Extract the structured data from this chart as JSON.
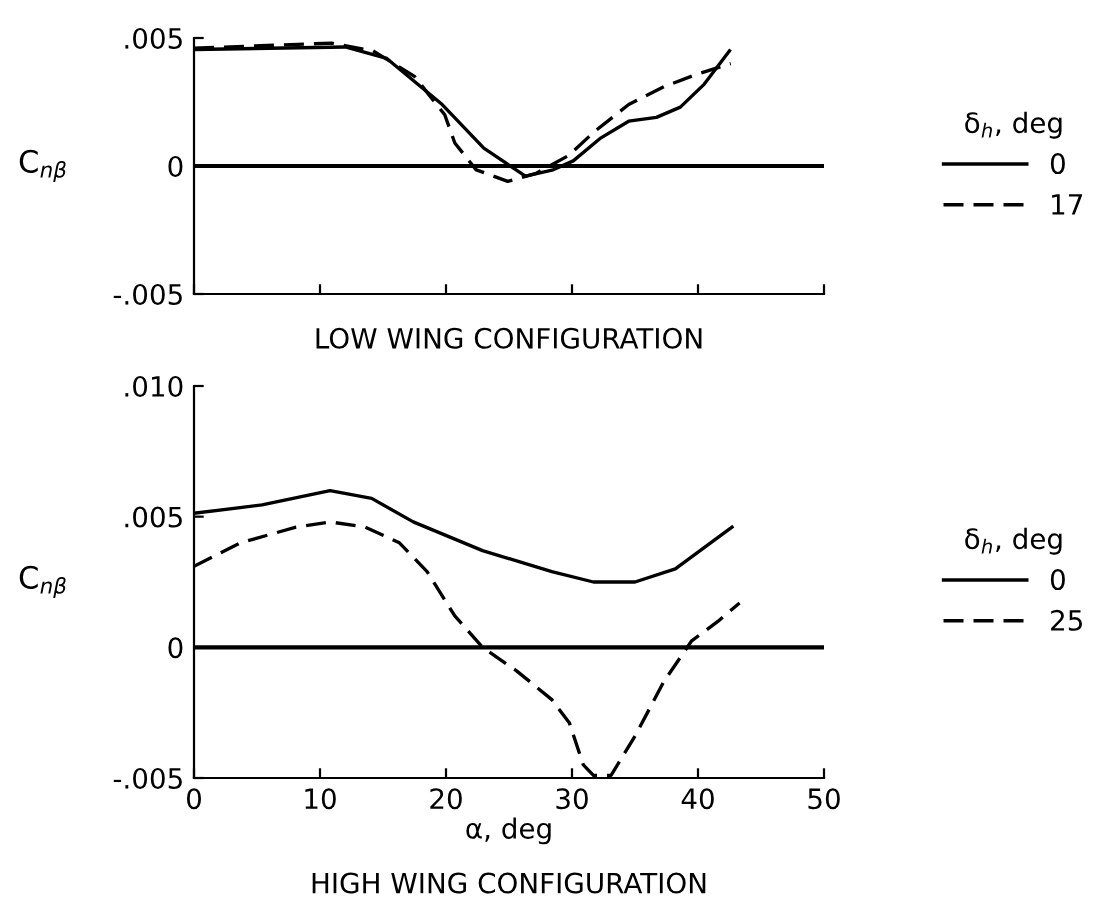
{
  "chart_data": [
    {
      "type": "line",
      "ylabel": "C$_{nβ}$",
      "legend_title": "δ$_{h}$, deg",
      "legend": "right",
      "tick_labels": "y",
      "xlim": [
        0,
        50
      ],
      "xticks": [
        {
          "value": 0,
          "label": null
        },
        {
          "value": 10,
          "label": null
        },
        {
          "value": 20,
          "label": null
        },
        {
          "value": 30,
          "label": null
        },
        {
          "value": 40,
          "label": null
        },
        {
          "value": 50,
          "label": null
        }
      ],
      "ylim": [
        -0.005,
        0.005
      ],
      "yticks": [
        {
          "value": -0.005,
          "label": "-.005"
        },
        {
          "value": 0,
          "label": "0"
        },
        {
          "value": 0.005,
          "label": ".005"
        }
      ],
      "ref_lines": [
        {
          "axis": "y",
          "value": 0,
          "color": "#000000"
        }
      ],
      "annotations": [
        "LOW WING CONFIGURATION"
      ],
      "series": [
        {
          "name": "0",
          "color": "#000000",
          "line_style": "solid",
          "x": [
            0,
            12,
            15.3,
            19.7,
            23,
            26.3,
            28.5,
            30.1,
            32.3,
            34.5,
            36.7,
            38.6,
            40.5,
            42.5
          ],
          "values": [
            0.00455,
            0.00465,
            0.0042,
            0.0024,
            0.0007,
            -0.0004,
            -0.00015,
            0.0002,
            0.0011,
            0.00175,
            0.0019,
            0.0023,
            0.0032,
            0.0045
          ]
        },
        {
          "name": "17",
          "color": "#000000",
          "line_style": "dashed",
          "x": [
            0,
            10.9,
            14.2,
            17.5,
            19.9,
            20.7,
            22.4,
            24.9,
            27.1,
            29.7,
            31.8,
            34.5,
            37.3,
            40,
            42.6
          ],
          "values": [
            0.0046,
            0.0048,
            0.0045,
            0.0035,
            0.002,
            0.0009,
            -0.00015,
            -0.0006,
            -0.0003,
            0.0004,
            0.00135,
            0.0024,
            0.0031,
            0.0036,
            0.004
          ]
        }
      ]
    },
    {
      "type": "line",
      "ylabel": "C$_{nβ}$",
      "xlabel": "α, deg",
      "legend_title": "δ$_{h}$, deg",
      "legend": "right",
      "xlim": [
        0,
        50
      ],
      "xticks": [
        0,
        10,
        20,
        30,
        40,
        50
      ],
      "ylim": [
        -0.005,
        0.01
      ],
      "yticks": [
        {
          "value": -0.005,
          "label": "-.005"
        },
        {
          "value": 0,
          "label": "0"
        },
        {
          "value": 0.005,
          "label": ".005"
        },
        {
          "value": 0.01,
          "label": ".010"
        }
      ],
      "ref_lines": [
        {
          "axis": "y",
          "value": 0,
          "color": "#000000"
        }
      ],
      "annotations": [
        "HIGH WING CONFIGURATION"
      ],
      "series": [
        {
          "name": "0",
          "color": "#000000",
          "line_style": "solid",
          "x": [
            0,
            5.4,
            10.8,
            14.1,
            17.4,
            22.9,
            28.4,
            31.7,
            35,
            38.2,
            41,
            42.7
          ],
          "values": [
            0.00513,
            0.00545,
            0.006,
            0.0057,
            0.0048,
            0.0037,
            0.0029,
            0.0025,
            0.0025,
            0.003,
            0.004,
            0.0046
          ]
        },
        {
          "name": "25",
          "color": "#000000",
          "line_style": "dashed",
          "x": [
            0,
            3.7,
            8.1,
            10.8,
            13.6,
            16.3,
            18.5,
            20.7,
            22.9,
            25.6,
            28.4,
            29.8,
            30.9,
            31.7,
            33.1,
            35,
            37.3,
            39.5,
            41.6,
            43.3
          ],
          "values": [
            0.0031,
            0.004,
            0.0046,
            0.0048,
            0.0046,
            0.004,
            0.0029,
            0.0012,
            0,
            -0.0009,
            -0.002,
            -0.0029,
            -0.0045,
            -0.0049,
            -0.0049,
            -0.0034,
            -0.0013,
            0.00025,
            0.001,
            0.0017
          ]
        }
      ]
    }
  ]
}
